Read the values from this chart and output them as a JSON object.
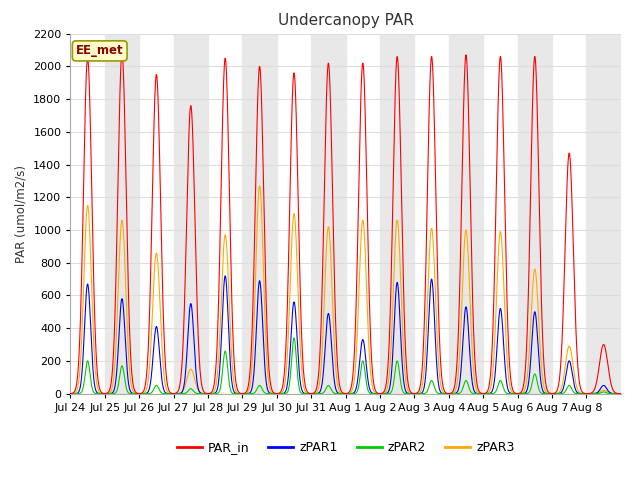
{
  "title": "Undercanopy PAR",
  "ylabel": "PAR (umol/m2/s)",
  "watermark": "EE_met",
  "ylim": [
    0,
    2200
  ],
  "fig_bg": "#ffffff",
  "plot_bg": "#ffffff",
  "band_color": "#e8e8e8",
  "grid_color": "#dddddd",
  "colors": {
    "PAR_in": "#ff0000",
    "zPAR1": "#0000ff",
    "zPAR2": "#00cc00",
    "zPAR3": "#ffaa00"
  },
  "tick_labels": [
    "Jul 24",
    "Jul 25",
    "Jul 26",
    "Jul 27",
    "Jul 28",
    "Jul 29",
    "Jul 30",
    "Jul 31",
    "Aug 1",
    "Aug 2",
    "Aug 3",
    "Aug 4",
    "Aug 5",
    "Aug 6",
    "Aug 7",
    "Aug 8"
  ],
  "num_days": 16,
  "daily_peaks_PAR_in": [
    2050,
    2080,
    1950,
    1760,
    2050,
    2000,
    1960,
    2020,
    2020,
    2060,
    2060,
    2070,
    2060,
    2060,
    1470,
    300
  ],
  "daily_peaks_zPAR1": [
    670,
    580,
    410,
    550,
    720,
    690,
    560,
    490,
    330,
    680,
    700,
    530,
    520,
    500,
    200,
    50
  ],
  "daily_peaks_zPAR2": [
    200,
    170,
    50,
    30,
    260,
    50,
    340,
    50,
    200,
    200,
    80,
    80,
    80,
    120,
    50,
    10
  ],
  "daily_peaks_zPAR3": [
    1150,
    1060,
    860,
    150,
    970,
    1270,
    1100,
    1020,
    1060,
    1060,
    1010,
    1000,
    990,
    760,
    290,
    20
  ],
  "pts_per_day": 144
}
